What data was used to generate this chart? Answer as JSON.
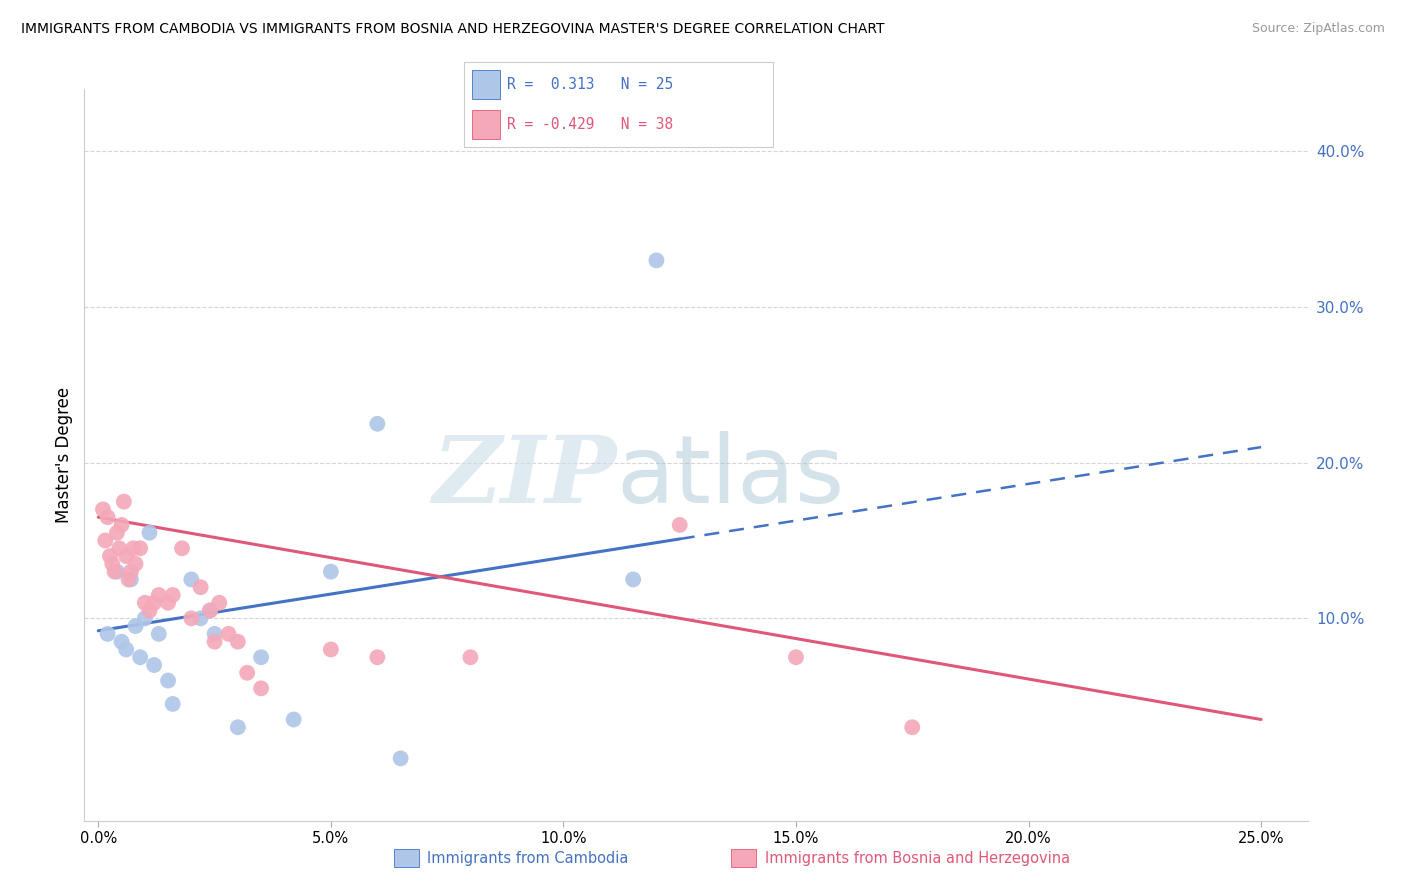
{
  "title": "IMMIGRANTS FROM CAMBODIA VS IMMIGRANTS FROM BOSNIA AND HERZEGOVINA MASTER'S DEGREE CORRELATION CHART",
  "source": "Source: ZipAtlas.com",
  "ylabel": "Master's Degree",
  "x_tick_labels": [
    "0.0%",
    "5.0%",
    "10.0%",
    "15.0%",
    "20.0%",
    "25.0%"
  ],
  "x_tick_values": [
    0.0,
    5.0,
    10.0,
    15.0,
    20.0,
    25.0
  ],
  "y_tick_labels": [
    "10.0%",
    "20.0%",
    "30.0%",
    "40.0%"
  ],
  "y_tick_values": [
    10.0,
    20.0,
    30.0,
    40.0
  ],
  "xlim": [
    -0.3,
    26.0
  ],
  "ylim": [
    -3.0,
    44.0
  ],
  "legend_label1": "Immigrants from Cambodia",
  "legend_label2": "Immigrants from Bosnia and Herzegovina",
  "blue_color": "#aec6e8",
  "pink_color": "#f4a8b8",
  "blue_line_color": "#4472c4",
  "pink_line_color": "#e05878",
  "blue_points": [
    [
      0.2,
      9.0
    ],
    [
      0.4,
      13.0
    ],
    [
      0.5,
      8.5
    ],
    [
      0.6,
      8.0
    ],
    [
      0.7,
      12.5
    ],
    [
      0.8,
      9.5
    ],
    [
      0.9,
      7.5
    ],
    [
      1.0,
      10.0
    ],
    [
      1.1,
      15.5
    ],
    [
      1.2,
      7.0
    ],
    [
      1.3,
      9.0
    ],
    [
      1.5,
      6.0
    ],
    [
      1.6,
      4.5
    ],
    [
      2.0,
      12.5
    ],
    [
      2.2,
      10.0
    ],
    [
      2.4,
      10.5
    ],
    [
      2.5,
      9.0
    ],
    [
      3.0,
      3.0
    ],
    [
      3.5,
      7.5
    ],
    [
      4.2,
      3.5
    ],
    [
      5.0,
      13.0
    ],
    [
      6.0,
      22.5
    ],
    [
      6.5,
      1.0
    ],
    [
      11.5,
      12.5
    ],
    [
      12.0,
      33.0
    ]
  ],
  "pink_points": [
    [
      0.1,
      17.0
    ],
    [
      0.15,
      15.0
    ],
    [
      0.2,
      16.5
    ],
    [
      0.25,
      14.0
    ],
    [
      0.3,
      13.5
    ],
    [
      0.35,
      13.0
    ],
    [
      0.4,
      15.5
    ],
    [
      0.45,
      14.5
    ],
    [
      0.5,
      16.0
    ],
    [
      0.55,
      17.5
    ],
    [
      0.6,
      14.0
    ],
    [
      0.65,
      12.5
    ],
    [
      0.7,
      13.0
    ],
    [
      0.75,
      14.5
    ],
    [
      0.8,
      13.5
    ],
    [
      0.9,
      14.5
    ],
    [
      1.0,
      11.0
    ],
    [
      1.1,
      10.5
    ],
    [
      1.2,
      11.0
    ],
    [
      1.3,
      11.5
    ],
    [
      1.5,
      11.0
    ],
    [
      1.6,
      11.5
    ],
    [
      1.8,
      14.5
    ],
    [
      2.0,
      10.0
    ],
    [
      2.2,
      12.0
    ],
    [
      2.4,
      10.5
    ],
    [
      2.5,
      8.5
    ],
    [
      2.6,
      11.0
    ],
    [
      2.8,
      9.0
    ],
    [
      3.0,
      8.5
    ],
    [
      3.2,
      6.5
    ],
    [
      3.5,
      5.5
    ],
    [
      5.0,
      8.0
    ],
    [
      6.0,
      7.5
    ],
    [
      8.0,
      7.5
    ],
    [
      12.5,
      16.0
    ],
    [
      15.0,
      7.5
    ],
    [
      17.5,
      3.0
    ]
  ],
  "blue_trend_x0": 0.0,
  "blue_trend_y0": 9.2,
  "blue_trend_x1": 25.0,
  "blue_trend_y1": 21.0,
  "blue_solid_end_x": 12.5,
  "pink_trend_x0": 0.0,
  "pink_trend_y0": 16.5,
  "pink_trend_x1": 25.0,
  "pink_trend_y1": 3.5,
  "grid_color": "#cccccc",
  "bg_color": "#ffffff"
}
